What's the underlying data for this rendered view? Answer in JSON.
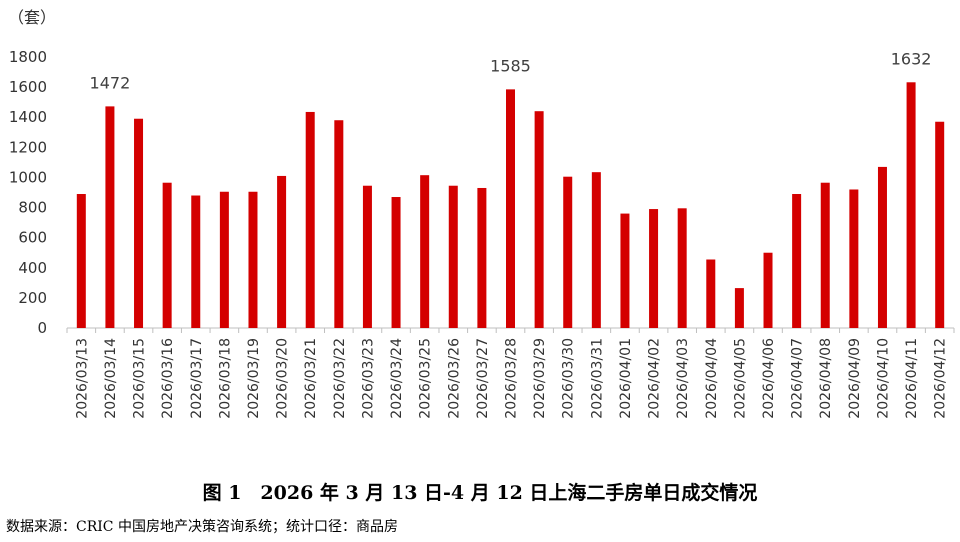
{
  "chart_data": {
    "type": "bar",
    "ylabel": "（套）",
    "ylim": [
      0,
      1800
    ],
    "yticks": [
      0,
      200,
      400,
      600,
      800,
      1000,
      1200,
      1400,
      1600,
      1800
    ],
    "grid": false,
    "bar_color": "#d40000",
    "categories": [
      "2026/03/13",
      "2026/03/14",
      "2026/03/15",
      "2026/03/16",
      "2026/03/17",
      "2026/03/18",
      "2026/03/19",
      "2026/03/20",
      "2026/03/21",
      "2026/03/22",
      "2026/03/23",
      "2026/03/24",
      "2026/03/25",
      "2026/03/26",
      "2026/03/27",
      "2026/03/28",
      "2026/03/29",
      "2026/03/30",
      "2026/03/31",
      "2026/04/01",
      "2026/04/02",
      "2026/04/03",
      "2026/04/04",
      "2026/04/05",
      "2026/04/06",
      "2026/04/07",
      "2026/04/08",
      "2026/04/09",
      "2026/04/10",
      "2026/04/11",
      "2026/04/12"
    ],
    "values": [
      890,
      1472,
      1390,
      965,
      880,
      905,
      905,
      1010,
      1435,
      1380,
      945,
      870,
      1015,
      945,
      930,
      1585,
      1440,
      1005,
      1035,
      760,
      790,
      795,
      455,
      265,
      500,
      890,
      965,
      920,
      1070,
      1632,
      1370
    ],
    "labeled_values": [
      "1472",
      "1585",
      "1632"
    ]
  },
  "caption": "图 1　2026 年 3 月 13 日-4 月 12 日上海二手房单日成交情况",
  "source": "数据来源：CRIC 中国房地产决策咨询系统；统计口径：商品房"
}
